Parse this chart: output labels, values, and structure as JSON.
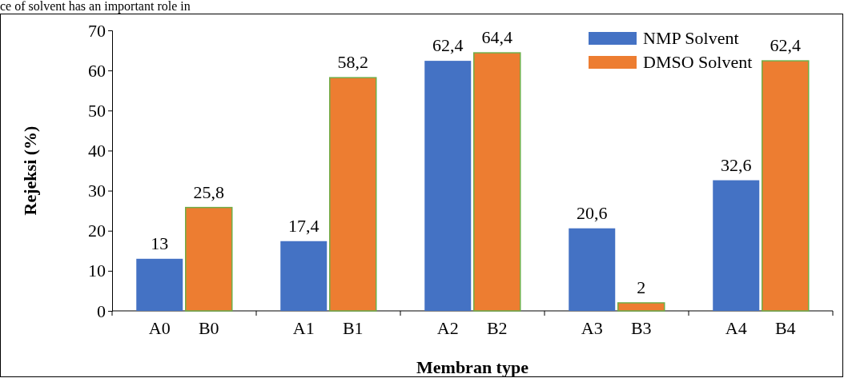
{
  "chart_data": {
    "type": "bar",
    "xlabel": "Membran type",
    "ylabel": "Rejeksi (%)",
    "annotations": [
      "ce of solvent has an important role in"
    ],
    "categories": [
      "A0",
      "B0",
      "A1",
      "B1",
      "A2",
      "B2",
      "A3",
      "B3",
      "A4",
      "B4"
    ],
    "series": [
      {
        "name": "NMP Solvent",
        "color": "#4472c4",
        "values": [
          13,
          null,
          17.4,
          null,
          62.4,
          null,
          20.6,
          null,
          32.6,
          null
        ],
        "value_labels": [
          "13",
          null,
          "17,4",
          null,
          "62,4",
          null,
          "20,6",
          null,
          "32,6",
          null
        ]
      },
      {
        "name": "DMSO Solvent",
        "color": "#ed7d31",
        "values": [
          null,
          25.8,
          null,
          58.2,
          null,
          64.4,
          null,
          2,
          null,
          62.4
        ],
        "value_labels": [
          null,
          "25,8",
          null,
          "58,2",
          null,
          "64,4",
          null,
          "2",
          null,
          "62,4"
        ]
      }
    ],
    "ylim": [
      0,
      70
    ],
    "yticks": [
      0,
      10,
      20,
      30,
      40,
      50,
      60,
      70
    ],
    "grid": false,
    "legend": "top right"
  }
}
